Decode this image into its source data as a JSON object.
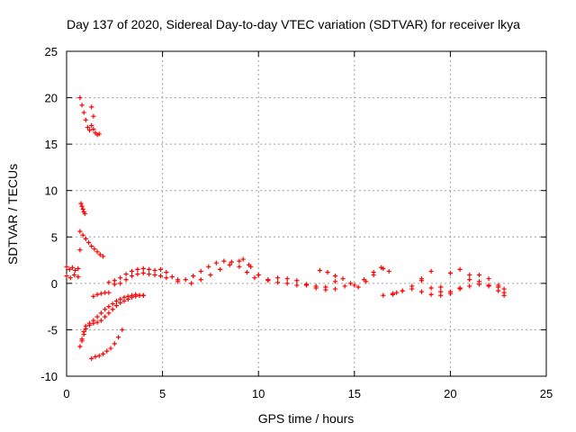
{
  "chart_data": {
    "type": "scatter",
    "title": "Day 137 of 2020, Sidereal Day-to-day VTEC variation (SDTVAR) for receiver lkya",
    "xlabel": "GPS time / hours",
    "ylabel": "SDTVAR / TECUs",
    "xlim": [
      0,
      25
    ],
    "ylim": [
      -10,
      25
    ],
    "xticks": [
      0,
      5,
      10,
      15,
      20,
      25
    ],
    "yticks": [
      -10,
      -5,
      0,
      5,
      10,
      15,
      20,
      25
    ],
    "xtick_labels": [
      "0",
      "5",
      "10",
      "15",
      "20",
      "25"
    ],
    "ytick_labels": [
      "-10",
      "-5",
      "0",
      "5",
      "10",
      "15",
      "20",
      "25"
    ],
    "grid": true,
    "marker": "+",
    "series": [
      {
        "name": "SDTVAR",
        "color": "#ff0000",
        "x": [
          0.0,
          0.15,
          0.3,
          0.45,
          0.6,
          0.0,
          0.2,
          0.4,
          0.6,
          0.7,
          0.8,
          0.9,
          1.0,
          1.1,
          1.2,
          1.3,
          1.4,
          1.3,
          1.4,
          1.5,
          1.6,
          1.7,
          0.75,
          0.8,
          0.85,
          0.9,
          0.95,
          0.7,
          0.85,
          1.0,
          1.15,
          1.3,
          1.45,
          1.6,
          1.75,
          1.9,
          0.7,
          0.7,
          0.8,
          0.9,
          1.0,
          1.2,
          1.4,
          1.6,
          1.8,
          2.0,
          2.2,
          2.4,
          2.6,
          2.8,
          3.0,
          3.2,
          3.4,
          3.6,
          3.8,
          4.0,
          0.8,
          0.9,
          1.0,
          1.2,
          1.4,
          1.6,
          1.8,
          2.0,
          2.2,
          2.4,
          2.6,
          2.8,
          3.0,
          3.2,
          3.4,
          3.6,
          3.8,
          4.0,
          1.3,
          1.5,
          1.7,
          1.9,
          2.1,
          2.3,
          2.5,
          2.7,
          2.9,
          1.4,
          1.6,
          1.8,
          2.0,
          2.2,
          2.2,
          2.5,
          2.8,
          3.1,
          3.4,
          3.7,
          4.0,
          4.3,
          4.6,
          4.9,
          5.2,
          5.5,
          5.8,
          2.5,
          2.8,
          3.1,
          3.4,
          3.7,
          4.0,
          4.3,
          4.6,
          4.9,
          5.2,
          5.8,
          6.2,
          6.6,
          7.0,
          7.4,
          7.8,
          8.2,
          8.6,
          9.0,
          9.4,
          9.8,
          6.5,
          7.0,
          7.5,
          8.0,
          8.5,
          9.0,
          9.5,
          10.0,
          10.5,
          11.0,
          11.5,
          12.0,
          9.2,
          9.6,
          10.0,
          10.5,
          11.0,
          11.5,
          12.0,
          12.5,
          13.0,
          13.5,
          14.0,
          12.5,
          13.0,
          13.5,
          14.0,
          14.5,
          15.0,
          15.5,
          16.0,
          16.5,
          17.0,
          13.2,
          13.6,
          14.0,
          14.4,
          14.8,
          15.2,
          15.6,
          16.0,
          16.4,
          16.8,
          17.2,
          16.5,
          17.0,
          17.5,
          18.0,
          18.5,
          19.0,
          19.5,
          20.0,
          20.5,
          21.0,
          21.5,
          22.0,
          22.5,
          22.8,
          17.5,
          18.0,
          18.5,
          19.0,
          19.5,
          20.0,
          20.5,
          21.0,
          21.5,
          22.0,
          22.5,
          22.8,
          18.5,
          19.0,
          19.5,
          20.0,
          20.5,
          21.0,
          21.5,
          22.0,
          22.5,
          22.8
        ],
        "y": [
          1.8,
          1.5,
          1.7,
          1.4,
          1.6,
          0.8,
          0.6,
          0.9,
          0.7,
          20.0,
          19.2,
          18.4,
          17.6,
          16.8,
          16.5,
          19.0,
          18.0,
          17.0,
          16.6,
          16.2,
          16.0,
          16.1,
          8.6,
          8.3,
          8.0,
          7.7,
          7.5,
          5.6,
          5.2,
          4.8,
          4.4,
          4.0,
          3.7,
          3.4,
          3.1,
          2.9,
          3.6,
          -6.8,
          -6.0,
          -5.2,
          -4.6,
          -4.3,
          -4.0,
          -3.6,
          -3.2,
          -2.8,
          -2.5,
          -2.2,
          -1.9,
          -1.7,
          -1.5,
          -1.4,
          -1.3,
          -1.2,
          -1.3,
          -1.3,
          -6.2,
          -5.5,
          -4.9,
          -4.5,
          -4.3,
          -4.2,
          -4.0,
          -3.6,
          -3.2,
          -2.8,
          -2.4,
          -2.1,
          -1.9,
          -1.7,
          -1.5,
          -1.4,
          -1.3,
          -1.3,
          -8.1,
          -7.9,
          -7.8,
          -7.6,
          -7.3,
          -7.0,
          -6.5,
          -5.8,
          -5.0,
          -1.4,
          -1.2,
          -1.1,
          -1.0,
          -1.0,
          0.1,
          0.3,
          0.6,
          1.0,
          1.3,
          1.5,
          1.6,
          1.5,
          1.4,
          1.5,
          1.2,
          0.7,
          0.4,
          -0.1,
          0.0,
          0.4,
          0.8,
          1.0,
          1.1,
          1.0,
          0.9,
          0.8,
          0.6,
          0.2,
          0.4,
          0.8,
          1.3,
          1.8,
          2.2,
          2.4,
          2.3,
          1.8,
          1.2,
          0.6,
          0.0,
          0.4,
          0.9,
          1.5,
          2.0,
          2.4,
          2.0,
          0.9,
          0.3,
          0.1,
          0.0,
          -0.2,
          2.6,
          1.8,
          0.9,
          0.4,
          0.6,
          0.5,
          0.3,
          -0.2,
          -0.5,
          -0.7,
          -0.6,
          -0.1,
          -0.3,
          -0.4,
          0.2,
          -0.3,
          -0.2,
          0.4,
          1.2,
          1.6,
          -1.2,
          1.4,
          1.2,
          0.8,
          0.5,
          0.0,
          -0.4,
          0.2,
          0.9,
          1.7,
          1.3,
          -1.0,
          -1.3,
          -1.1,
          -0.8,
          -0.6,
          0.5,
          1.3,
          -0.4,
          1.1,
          1.5,
          0.9,
          0.2,
          -0.2,
          -0.4,
          -0.6,
          -0.8,
          -0.3,
          0.3,
          -0.5,
          -0.9,
          -1.1,
          -0.5,
          0.4,
          0.9,
          0.5,
          -0.2,
          -1.0,
          -0.9,
          -1.2,
          -1.3,
          -0.9,
          -0.6,
          -0.3,
          -0.1,
          -0.3,
          -0.8,
          -1.3
        ]
      }
    ]
  }
}
